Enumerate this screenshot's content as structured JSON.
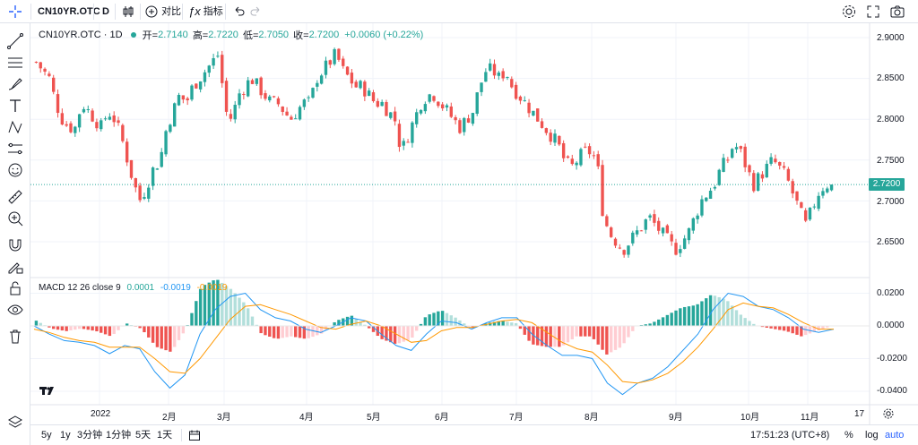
{
  "toolbar": {
    "symbol": "CN10YR.OTC",
    "interval": "D",
    "compare_label": "对比",
    "indicators_label": "指标"
  },
  "legend": {
    "title": "CN10YR.OTC · 1D",
    "open_label": "开=",
    "open": "2.7140",
    "high_label": "高=",
    "high": "2.7220",
    "low_label": "低=",
    "low": "2.7050",
    "close_label": "收=",
    "close": "2.7200",
    "change": "+0.0060 (+0.22%)"
  },
  "macd_legend": {
    "title": "MACD 12 26 close 9",
    "hist": "0.0001",
    "macd": "-0.0019",
    "signal": "-0.0019"
  },
  "price_axis": [
    "2.9000",
    "2.8500",
    "2.8000",
    "2.7500",
    "2.7000",
    "2.6500"
  ],
  "price_axis_values": [
    2.9,
    2.85,
    2.8,
    2.75,
    2.7,
    2.65
  ],
  "last_price": "2.7200",
  "macd_axis": [
    "0.0200",
    "0.0000",
    "-0.0200",
    "-0.0400"
  ],
  "time_axis": [
    "2022",
    "2月",
    "3月",
    "4月",
    "5月",
    "6月",
    "7月",
    "8月",
    "9月",
    "10月",
    "11月",
    "17"
  ],
  "bottom": {
    "ranges": [
      "5y",
      "1y",
      "3分钟",
      "1分钟",
      "5天",
      "1天"
    ],
    "clock": "17:51:23 (UTC+8)",
    "percent": "%",
    "log": "log",
    "auto": "auto"
  },
  "colors": {
    "up": "#26a69a",
    "down": "#ef5350",
    "hist_up_strong": "#26a69a",
    "hist_up_weak": "#b2dfdb",
    "hist_down_strong": "#ef5350",
    "hist_down_weak": "#ffcdd2",
    "macd_line": "#2196f3",
    "signal_line": "#ff9800",
    "price_line": "#26a69a"
  },
  "chart_data": {
    "type": "candlestick",
    "symbol": "CN10YR.OTC",
    "interval": "1D",
    "ylim": [
      2.62,
      2.92
    ],
    "segments": [
      [
        2.87,
        2.86,
        2.85,
        2.82,
        2.8,
        2.79
      ],
      [
        2.79,
        2.82,
        2.81,
        2.8,
        2.79,
        2.81,
        2.8,
        2.78,
        2.75,
        2.72,
        2.7,
        2.72,
        2.74,
        2.75
      ],
      [
        2.79,
        2.81,
        2.83,
        2.82,
        2.84,
        2.85,
        2.86,
        2.87,
        2.88
      ],
      [
        2.81,
        2.8,
        2.83,
        2.84,
        2.85,
        2.84,
        2.83,
        2.82,
        2.82,
        2.81,
        2.8,
        2.81,
        2.82
      ],
      [
        2.82,
        2.85,
        2.86,
        2.87,
        2.88,
        2.86,
        2.85,
        2.84,
        2.84,
        2.83,
        2.82,
        2.82,
        2.81
      ],
      [
        2.8,
        2.76,
        2.78,
        2.8,
        2.82,
        2.83,
        2.83,
        2.82,
        2.81,
        2.8,
        2.79,
        2.8
      ],
      [
        2.81,
        2.84,
        2.86,
        2.86,
        2.85,
        2.86,
        2.84,
        2.83,
        2.82,
        2.81,
        2.8,
        2.79,
        2.78,
        2.77
      ],
      [
        2.75,
        2.74,
        2.75,
        2.76,
        2.76,
        2.75,
        2.68,
        2.66,
        2.65,
        2.64,
        2.65,
        2.66,
        2.67,
        2.68,
        2.67,
        2.66,
        2.65,
        2.64,
        2.65,
        2.66
      ],
      [
        2.68,
        2.7,
        2.71,
        2.72,
        2.74,
        2.75,
        2.77,
        2.76,
        2.74,
        2.72,
        2.73,
        2.74,
        2.75,
        2.74,
        2.73,
        2.71,
        2.69,
        2.67,
        2.69,
        2.71,
        2.72,
        2.72
      ]
    ],
    "macd": {
      "ylim": [
        -0.046,
        0.022
      ],
      "series": [
        {
          "name": "MACD",
          "values": [
            0.0,
            -0.005,
            -0.009,
            -0.01,
            -0.012,
            -0.017,
            -0.012,
            -0.014,
            -0.028,
            -0.038,
            -0.03,
            -0.005,
            0.01,
            0.018,
            0.02,
            0.01,
            0.005,
            0.003,
            -0.002,
            -0.004,
            0.0,
            0.005,
            0.003,
            -0.005,
            -0.012,
            -0.015,
            -0.005,
            0.003,
            0.002,
            -0.002,
            0.002,
            0.005,
            0.005,
            -0.005,
            -0.012,
            -0.018,
            -0.018,
            -0.02,
            -0.035,
            -0.042,
            -0.035,
            -0.032,
            -0.025,
            -0.015,
            -0.005,
            0.01,
            0.02,
            0.018,
            0.012,
            0.01,
            0.005,
            -0.002,
            -0.004,
            -0.002
          ]
        },
        {
          "name": "Signal",
          "values": [
            -0.002,
            -0.004,
            -0.007,
            -0.009,
            -0.01,
            -0.013,
            -0.013,
            -0.013,
            -0.02,
            -0.028,
            -0.029,
            -0.02,
            -0.008,
            0.004,
            0.012,
            0.013,
            0.01,
            0.007,
            0.003,
            -0.001,
            -0.002,
            0.001,
            0.003,
            0.0,
            -0.005,
            -0.01,
            -0.009,
            -0.003,
            -0.001,
            -0.001,
            0.001,
            0.003,
            0.004,
            0.002,
            -0.004,
            -0.01,
            -0.014,
            -0.016,
            -0.024,
            -0.034,
            -0.035,
            -0.033,
            -0.029,
            -0.022,
            -0.013,
            -0.002,
            0.01,
            0.014,
            0.012,
            0.011,
            0.007,
            0.002,
            -0.002,
            -0.002
          ]
        }
      ]
    }
  }
}
